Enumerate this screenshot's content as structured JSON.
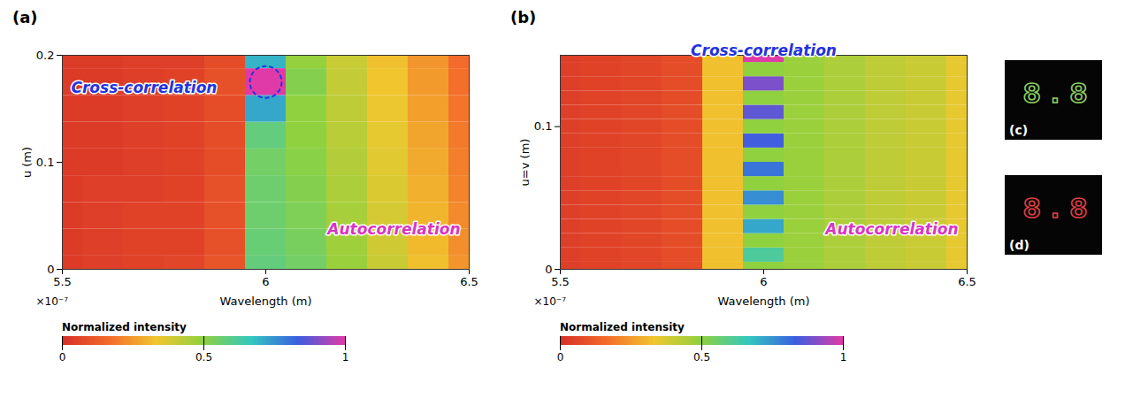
{
  "chart_data": [
    {
      "type": "heatmap",
      "panel": "(a)",
      "xlabel": "Wavelength (m)",
      "ylabel": "u (m)",
      "x_multiplier": "×10⁻⁷",
      "x": [
        5.5e-07,
        5.6e-07,
        5.7e-07,
        5.8e-07,
        5.9e-07,
        6e-07,
        6.1e-07,
        6.2e-07,
        6.3e-07,
        6.4e-07,
        6.5e-07
      ],
      "y": [
        0,
        0.025,
        0.05,
        0.075,
        0.1,
        0.125,
        0.15,
        0.175,
        0.2
      ],
      "z": [
        [
          0.03,
          0.04,
          0.05,
          0.06,
          0.1,
          0.58,
          0.55,
          0.48,
          0.4,
          0.32,
          0.24
        ],
        [
          0.03,
          0.04,
          0.05,
          0.05,
          0.09,
          0.57,
          0.54,
          0.47,
          0.39,
          0.31,
          0.23
        ],
        [
          0.03,
          0.04,
          0.05,
          0.05,
          0.09,
          0.56,
          0.53,
          0.46,
          0.38,
          0.3,
          0.22
        ],
        [
          0.03,
          0.04,
          0.04,
          0.05,
          0.09,
          0.56,
          0.52,
          0.45,
          0.37,
          0.29,
          0.21
        ],
        [
          0.03,
          0.03,
          0.04,
          0.05,
          0.08,
          0.55,
          0.51,
          0.44,
          0.36,
          0.28,
          0.2
        ],
        [
          0.03,
          0.03,
          0.04,
          0.05,
          0.08,
          0.58,
          0.5,
          0.43,
          0.35,
          0.27,
          0.19
        ],
        [
          0.03,
          0.03,
          0.04,
          0.05,
          0.08,
          0.72,
          0.5,
          0.42,
          0.34,
          0.26,
          0.18
        ],
        [
          0.03,
          0.03,
          0.04,
          0.05,
          0.09,
          1.0,
          0.52,
          0.41,
          0.33,
          0.25,
          0.17
        ],
        [
          0.03,
          0.03,
          0.04,
          0.04,
          0.08,
          0.7,
          0.49,
          0.4,
          0.32,
          0.24,
          0.16
        ]
      ],
      "xlim": [
        5.5e-07,
        6.5e-07
      ],
      "xticks": [
        {
          "value": 5.5e-07,
          "label": "5.5"
        },
        {
          "value": 6e-07,
          "label": "6"
        },
        {
          "value": 6.5e-07,
          "label": "6.5"
        }
      ],
      "ylim": [
        0,
        0.2
      ],
      "yticks": [
        0,
        0.1,
        0.2
      ],
      "colorbar": {
        "label": "Normalized intensity",
        "clim": [
          0,
          1
        ],
        "ticks": [
          0,
          0.5,
          1
        ]
      },
      "annotations": [
        {
          "text": "Cross-correlation",
          "color": "#2233dd"
        },
        {
          "text": "Autocorrelation",
          "color": "#d936c0"
        }
      ]
    },
    {
      "type": "heatmap",
      "panel": "(b)",
      "xlabel": "Wavelength (m)",
      "ylabel": "u=v (m)",
      "x_multiplier": "×10⁻⁷",
      "x": [
        5.5e-07,
        5.6e-07,
        5.7e-07,
        5.8e-07,
        5.9e-07,
        6e-07,
        6.1e-07,
        6.2e-07,
        6.3e-07,
        6.4e-07,
        6.5e-07
      ],
      "y": [
        0,
        0.01,
        0.02,
        0.03,
        0.04,
        0.05,
        0.06,
        0.07,
        0.08,
        0.09,
        0.1,
        0.11,
        0.12,
        0.13,
        0.14,
        0.15
      ],
      "z": [
        [
          0.04,
          0.05,
          0.06,
          0.08,
          0.32,
          0.5,
          0.48,
          0.45,
          0.42,
          0.4,
          0.35
        ],
        [
          0.04,
          0.05,
          0.06,
          0.08,
          0.32,
          0.62,
          0.48,
          0.45,
          0.42,
          0.4,
          0.35
        ],
        [
          0.04,
          0.05,
          0.06,
          0.08,
          0.32,
          0.5,
          0.48,
          0.45,
          0.42,
          0.4,
          0.35
        ],
        [
          0.04,
          0.05,
          0.06,
          0.08,
          0.32,
          0.72,
          0.48,
          0.45,
          0.42,
          0.4,
          0.35
        ],
        [
          0.04,
          0.05,
          0.06,
          0.08,
          0.32,
          0.5,
          0.48,
          0.45,
          0.42,
          0.4,
          0.35
        ],
        [
          0.04,
          0.05,
          0.06,
          0.08,
          0.32,
          0.76,
          0.48,
          0.45,
          0.42,
          0.4,
          0.35
        ],
        [
          0.04,
          0.05,
          0.06,
          0.08,
          0.32,
          0.5,
          0.48,
          0.45,
          0.42,
          0.4,
          0.35
        ],
        [
          0.04,
          0.05,
          0.06,
          0.08,
          0.32,
          0.8,
          0.48,
          0.45,
          0.42,
          0.4,
          0.35
        ],
        [
          0.04,
          0.05,
          0.06,
          0.08,
          0.32,
          0.5,
          0.48,
          0.45,
          0.42,
          0.4,
          0.35
        ],
        [
          0.04,
          0.05,
          0.06,
          0.08,
          0.32,
          0.84,
          0.48,
          0.45,
          0.42,
          0.4,
          0.35
        ],
        [
          0.04,
          0.05,
          0.06,
          0.08,
          0.32,
          0.5,
          0.48,
          0.45,
          0.42,
          0.4,
          0.35
        ],
        [
          0.04,
          0.05,
          0.06,
          0.08,
          0.32,
          0.87,
          0.48,
          0.45,
          0.42,
          0.4,
          0.35
        ],
        [
          0.04,
          0.05,
          0.06,
          0.08,
          0.32,
          0.5,
          0.48,
          0.45,
          0.42,
          0.4,
          0.35
        ],
        [
          0.04,
          0.05,
          0.06,
          0.08,
          0.32,
          0.9,
          0.48,
          0.45,
          0.42,
          0.4,
          0.35
        ],
        [
          0.04,
          0.05,
          0.06,
          0.08,
          0.32,
          0.5,
          0.48,
          0.45,
          0.42,
          0.4,
          0.35
        ],
        [
          0.04,
          0.05,
          0.06,
          0.08,
          0.32,
          1.0,
          0.48,
          0.45,
          0.42,
          0.4,
          0.35
        ]
      ],
      "xlim": [
        5.5e-07,
        6.5e-07
      ],
      "xticks": [
        {
          "value": 5.5e-07,
          "label": "5.5"
        },
        {
          "value": 6e-07,
          "label": "6"
        },
        {
          "value": 6.5e-07,
          "label": "6.5"
        }
      ],
      "ylim": [
        0,
        0.15
      ],
      "yticks": [
        0,
        0.1
      ],
      "colorbar": {
        "label": "Normalized intensity",
        "clim": [
          0,
          1
        ],
        "ticks": [
          0,
          0.5,
          1
        ]
      },
      "annotations": [
        {
          "text": "Cross-correlation",
          "color": "#2233dd"
        },
        {
          "text": "Autocorrelation",
          "color": "#d936c0"
        }
      ]
    }
  ],
  "images": [
    {
      "panel": "(c)",
      "text": "8.8",
      "color": "#8fd060"
    },
    {
      "panel": "(d)",
      "text": "8.8",
      "color": "#e04040"
    }
  ]
}
